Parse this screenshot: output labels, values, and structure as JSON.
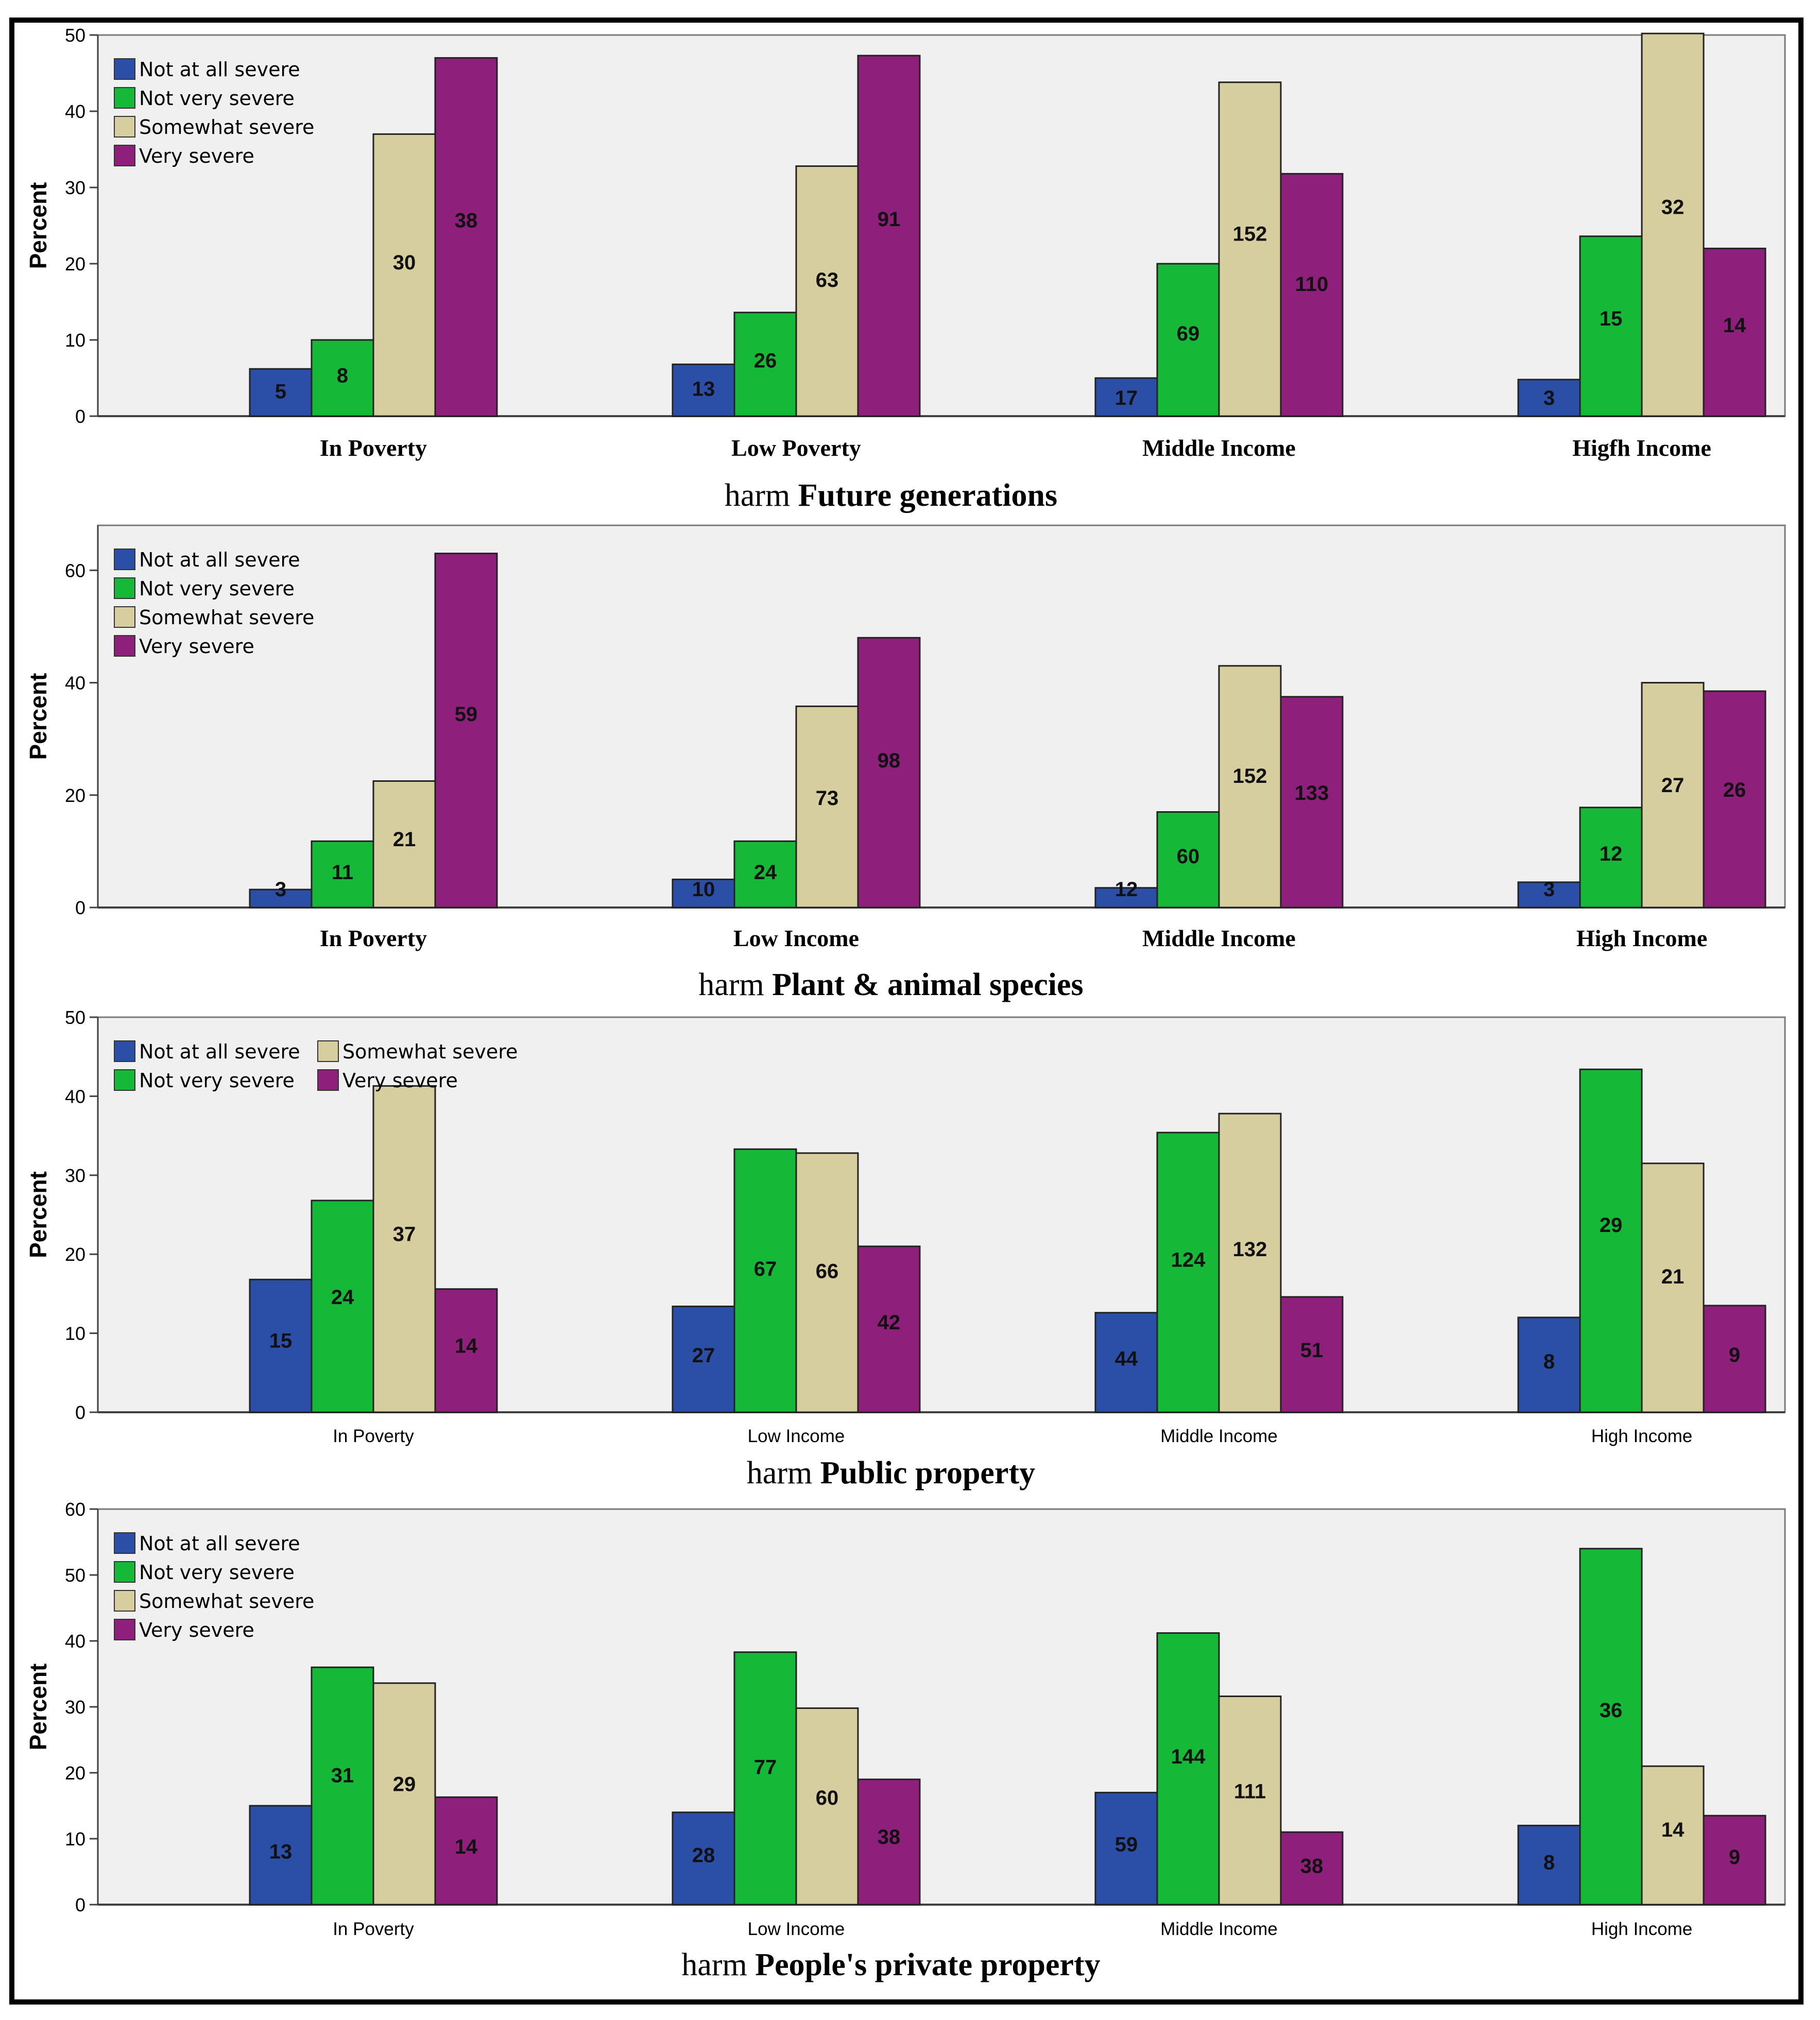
{
  "colors": {
    "series": [
      "#2B4EA6",
      "#15B837",
      "#D6CE9E",
      "#8E1F7A"
    ],
    "plot_bg": "#F0F0F0",
    "axis": "#404040"
  },
  "chart_data": [
    {
      "type": "bar",
      "ylabel": "Percent",
      "ylim": [
        0,
        50
      ],
      "yticks": [
        0,
        10,
        20,
        30,
        40,
        50
      ],
      "categories": [
        "In Poverty",
        "Low Poverty",
        "Middle Income",
        "Higfh Income"
      ],
      "category_style": "bold",
      "legend": {
        "layout": "vertical",
        "position": "top-left"
      },
      "caption": {
        "prefix": "harm ",
        "topic": "Future generations"
      },
      "series": [
        {
          "name": "Not at all severe",
          "values": [
            6.2,
            6.8,
            5.0,
            4.8
          ],
          "labels": [
            "5",
            "13",
            "17",
            "3"
          ]
        },
        {
          "name": "Not very severe",
          "values": [
            10.0,
            13.6,
            20.0,
            23.6
          ],
          "labels": [
            "8",
            "26",
            "69",
            "15"
          ]
        },
        {
          "name": "Somewhat severe",
          "values": [
            37.0,
            32.8,
            43.8,
            50.2
          ],
          "labels": [
            "30",
            "63",
            "152",
            "32"
          ]
        },
        {
          "name": "Very severe",
          "values": [
            47.0,
            47.3,
            31.8,
            22.0
          ],
          "labels": [
            "38",
            "91",
            "110",
            "14"
          ]
        }
      ]
    },
    {
      "type": "bar",
      "ylabel": "Percent",
      "ylim": [
        0,
        68
      ],
      "yticks": [
        0,
        20,
        40,
        60
      ],
      "categories": [
        "In Poverty",
        "Low Income",
        "Middle Income",
        "High Income"
      ],
      "category_style": "bold",
      "legend": {
        "layout": "vertical",
        "position": "top-left"
      },
      "caption": {
        "prefix": "harm ",
        "topic": "Plant & animal species"
      },
      "series": [
        {
          "name": "Not at all severe",
          "values": [
            3.2,
            5.0,
            3.5,
            4.5
          ],
          "labels": [
            "3",
            "10",
            "12",
            "3"
          ]
        },
        {
          "name": "Not very severe",
          "values": [
            11.8,
            11.8,
            17.0,
            17.8
          ],
          "labels": [
            "11",
            "24",
            "60",
            "12"
          ]
        },
        {
          "name": "Somewhat severe",
          "values": [
            22.5,
            35.8,
            43.0,
            40.0
          ],
          "labels": [
            "21",
            "73",
            "152",
            "27"
          ]
        },
        {
          "name": "Very severe",
          "values": [
            63.0,
            48.0,
            37.5,
            38.5
          ],
          "labels": [
            "59",
            "98",
            "133",
            "26"
          ]
        }
      ]
    },
    {
      "type": "bar",
      "ylabel": "Percent",
      "ylim": [
        0,
        50
      ],
      "yticks": [
        0,
        10,
        20,
        30,
        40,
        50
      ],
      "categories": [
        "In Poverty",
        "Low Income",
        "Middle Income",
        "High Income"
      ],
      "category_style": "plain",
      "legend": {
        "layout": "grid",
        "position": "top-left"
      },
      "caption": {
        "prefix": "harm ",
        "topic": "Public property"
      },
      "series": [
        {
          "name": "Not at all severe",
          "values": [
            16.8,
            13.4,
            12.6,
            12.0
          ],
          "labels": [
            "15",
            "27",
            "44",
            "8"
          ]
        },
        {
          "name": "Not very severe",
          "values": [
            26.8,
            33.3,
            35.4,
            43.4
          ],
          "labels": [
            "24",
            "67",
            "124",
            "29"
          ]
        },
        {
          "name": "Somewhat severe",
          "values": [
            41.3,
            32.8,
            37.8,
            31.5
          ],
          "labels": [
            "37",
            "66",
            "132",
            "21"
          ]
        },
        {
          "name": "Very severe",
          "values": [
            15.6,
            21.0,
            14.6,
            13.5
          ],
          "labels": [
            "14",
            "42",
            "51",
            "9"
          ]
        }
      ]
    },
    {
      "type": "bar",
      "ylabel": "Percent",
      "ylim": [
        0,
        60
      ],
      "yticks": [
        0,
        10,
        20,
        30,
        40,
        50,
        60
      ],
      "categories": [
        "In Poverty",
        "Low Income",
        "Middle Income",
        "High Income"
      ],
      "category_style": "plain",
      "legend": {
        "layout": "vertical",
        "position": "top-left"
      },
      "caption": {
        "prefix": "harm ",
        "topic": "People's private property"
      },
      "series": [
        {
          "name": "Not at all severe",
          "values": [
            15.0,
            14.0,
            17.0,
            12.0
          ],
          "labels": [
            "13",
            "28",
            "59",
            "8"
          ]
        },
        {
          "name": "Not very severe",
          "values": [
            36.0,
            38.3,
            41.2,
            54.0
          ],
          "labels": [
            "31",
            "77",
            "144",
            "36"
          ]
        },
        {
          "name": "Somewhat severe",
          "values": [
            33.6,
            29.8,
            31.6,
            21.0
          ],
          "labels": [
            "29",
            "60",
            "111",
            "14"
          ]
        },
        {
          "name": "Very severe",
          "values": [
            16.3,
            19.0,
            11.0,
            13.5
          ],
          "labels": [
            "14",
            "38",
            "38",
            "9"
          ]
        }
      ]
    }
  ]
}
